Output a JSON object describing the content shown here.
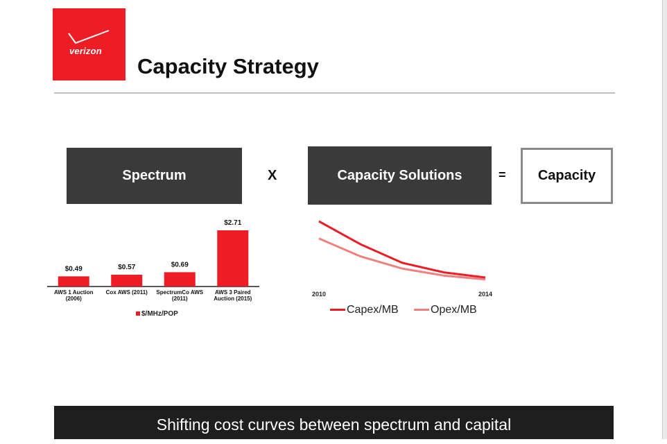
{
  "header": {
    "logo_text": "verizon",
    "title": "Capacity Strategy"
  },
  "equation": {
    "spectrum_label": "Spectrum",
    "multiply_symbol": "X",
    "solutions_label": "Capacity Solutions",
    "equals_symbol": "=",
    "capacity_label": "Capacity"
  },
  "colors": {
    "brand_red": "#ee1c25",
    "opex_pink": "#f08080",
    "dark_box": "#3a3a3a",
    "banner_bg": "#1e1e1e"
  },
  "chart_data": [
    {
      "type": "bar",
      "categories": [
        [
          "AWS 1 Auction",
          "(2006)"
        ],
        [
          "Cox AWS (2011)"
        ],
        [
          "SpectrumCo AWS",
          "(2011)"
        ],
        [
          "AWS 3 Paired",
          "Auction (2015)"
        ]
      ],
      "series": [
        {
          "name": "$/MHz/POP",
          "values": [
            0.49,
            0.57,
            0.69,
            2.71
          ],
          "labels": [
            "$0.49",
            "$0.57",
            "$0.69",
            "$2.71"
          ]
        }
      ],
      "ylim": [
        0,
        2.71
      ],
      "legend": "bottom"
    },
    {
      "type": "line",
      "x_ticks": [
        "2010",
        "2014"
      ],
      "x": [
        2010,
        2011,
        2012,
        2013,
        2014
      ],
      "series": [
        {
          "name": "Capex/MB",
          "values": [
            1.0,
            0.64,
            0.35,
            0.2,
            0.12
          ]
        },
        {
          "name": "Opex/MB",
          "values": [
            0.73,
            0.45,
            0.26,
            0.15,
            0.09
          ]
        }
      ],
      "legend": "bottom"
    }
  ],
  "banner": {
    "text": "Shifting cost curves between spectrum and capital"
  }
}
